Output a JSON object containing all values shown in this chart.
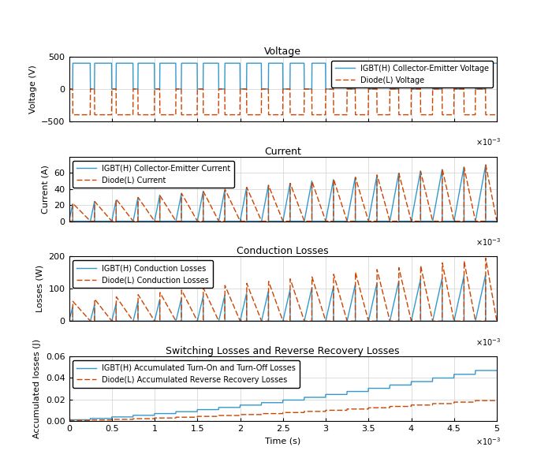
{
  "igbt_color": "#3399CC",
  "diode_color": "#CC4400",
  "title1": "Voltage",
  "title2": "Current",
  "title3": "Conduction Losses",
  "title4": "Switching Losses and Reverse Recovery Losses",
  "ylabel1": "Voltage (V)",
  "ylabel2": "Current (A)",
  "ylabel3": "Losses (W)",
  "ylabel4": "Accumulated losses (J)",
  "xlabel": "Time (s)",
  "xlim": [
    0,
    0.005
  ],
  "ylim1": [
    -500,
    500
  ],
  "ylim2": [
    0,
    80
  ],
  "ylim3": [
    0,
    200
  ],
  "ylim4": [
    0,
    0.06
  ],
  "yticks1": [
    -500,
    0,
    500
  ],
  "yticks2": [
    0,
    20,
    40,
    60
  ],
  "yticks3": [
    0,
    100,
    200
  ],
  "yticks4": [
    0,
    0.02,
    0.04,
    0.06
  ],
  "legend1_igbt": "IGBT(H) Collector-Emitter Voltage",
  "legend1_diode": "Diode(L) Voltage",
  "legend2_igbt": "IGBT(H) Collector-Emitter Current",
  "legend2_diode": "Diode(L) Current",
  "legend3_igbt": "IGBT(H) Conduction Losses",
  "legend3_diode": "Diode(L) Conduction Losses",
  "legend4_igbt": "IGBT(H) Accumulated Turn-On and Turn-Off Losses",
  "legend4_diode": "Diode(L) Accumulated Reverse Recovery Losses",
  "bg_color": "#FFFFFF",
  "grid_color": "#D0D0D0",
  "title_fontsize": 9,
  "label_fontsize": 8,
  "tick_fontsize": 8,
  "legend_fontsize": 7,
  "linewidth": 1.0
}
